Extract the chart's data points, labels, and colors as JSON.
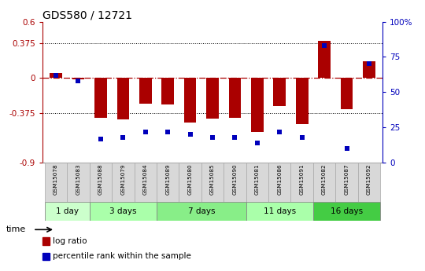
{
  "title": "GDS580 / 12721",
  "samples": [
    "GSM15078",
    "GSM15083",
    "GSM15088",
    "GSM15079",
    "GSM15084",
    "GSM15089",
    "GSM15080",
    "GSM15085",
    "GSM15090",
    "GSM15081",
    "GSM15086",
    "GSM15091",
    "GSM15082",
    "GSM15087",
    "GSM15092"
  ],
  "log_ratio": [
    0.05,
    -0.01,
    -0.42,
    -0.44,
    -0.27,
    -0.28,
    -0.47,
    -0.43,
    -0.42,
    -0.57,
    -0.3,
    -0.49,
    0.4,
    -0.33,
    0.18
  ],
  "pct_rank": [
    62,
    58,
    17,
    18,
    22,
    22,
    20,
    18,
    18,
    14,
    22,
    18,
    83,
    10,
    70
  ],
  "groups": [
    {
      "label": "1 day",
      "start": 0,
      "end": 2,
      "color": "#ccffcc"
    },
    {
      "label": "3 days",
      "start": 2,
      "end": 5,
      "color": "#aaffaa"
    },
    {
      "label": "7 days",
      "start": 5,
      "end": 9,
      "color": "#88ee88"
    },
    {
      "label": "11 days",
      "start": 9,
      "end": 12,
      "color": "#aaffaa"
    },
    {
      "label": "16 days",
      "start": 12,
      "end": 15,
      "color": "#44cc44"
    }
  ],
  "bar_color": "#aa0000",
  "dot_color": "#0000bb",
  "ylim_left": [
    -0.9,
    0.6
  ],
  "yticks_left": [
    -0.9,
    -0.375,
    0.0,
    0.375,
    0.6
  ],
  "ytick_labels_left": [
    "-0.9",
    "-0.375",
    "0",
    "0.375",
    "0.6"
  ],
  "ylim_right": [
    0,
    100
  ],
  "yticks_right": [
    0,
    25,
    50,
    75,
    100
  ],
  "ytick_labels_right": [
    "0",
    "25",
    "50",
    "75",
    "100%"
  ],
  "hlines": [
    -0.375,
    0.375
  ],
  "zero_line": 0.0,
  "bar_width": 0.55,
  "background_color": "#ffffff",
  "label_bg": "#d8d8d8",
  "label_border": "#aaaaaa"
}
